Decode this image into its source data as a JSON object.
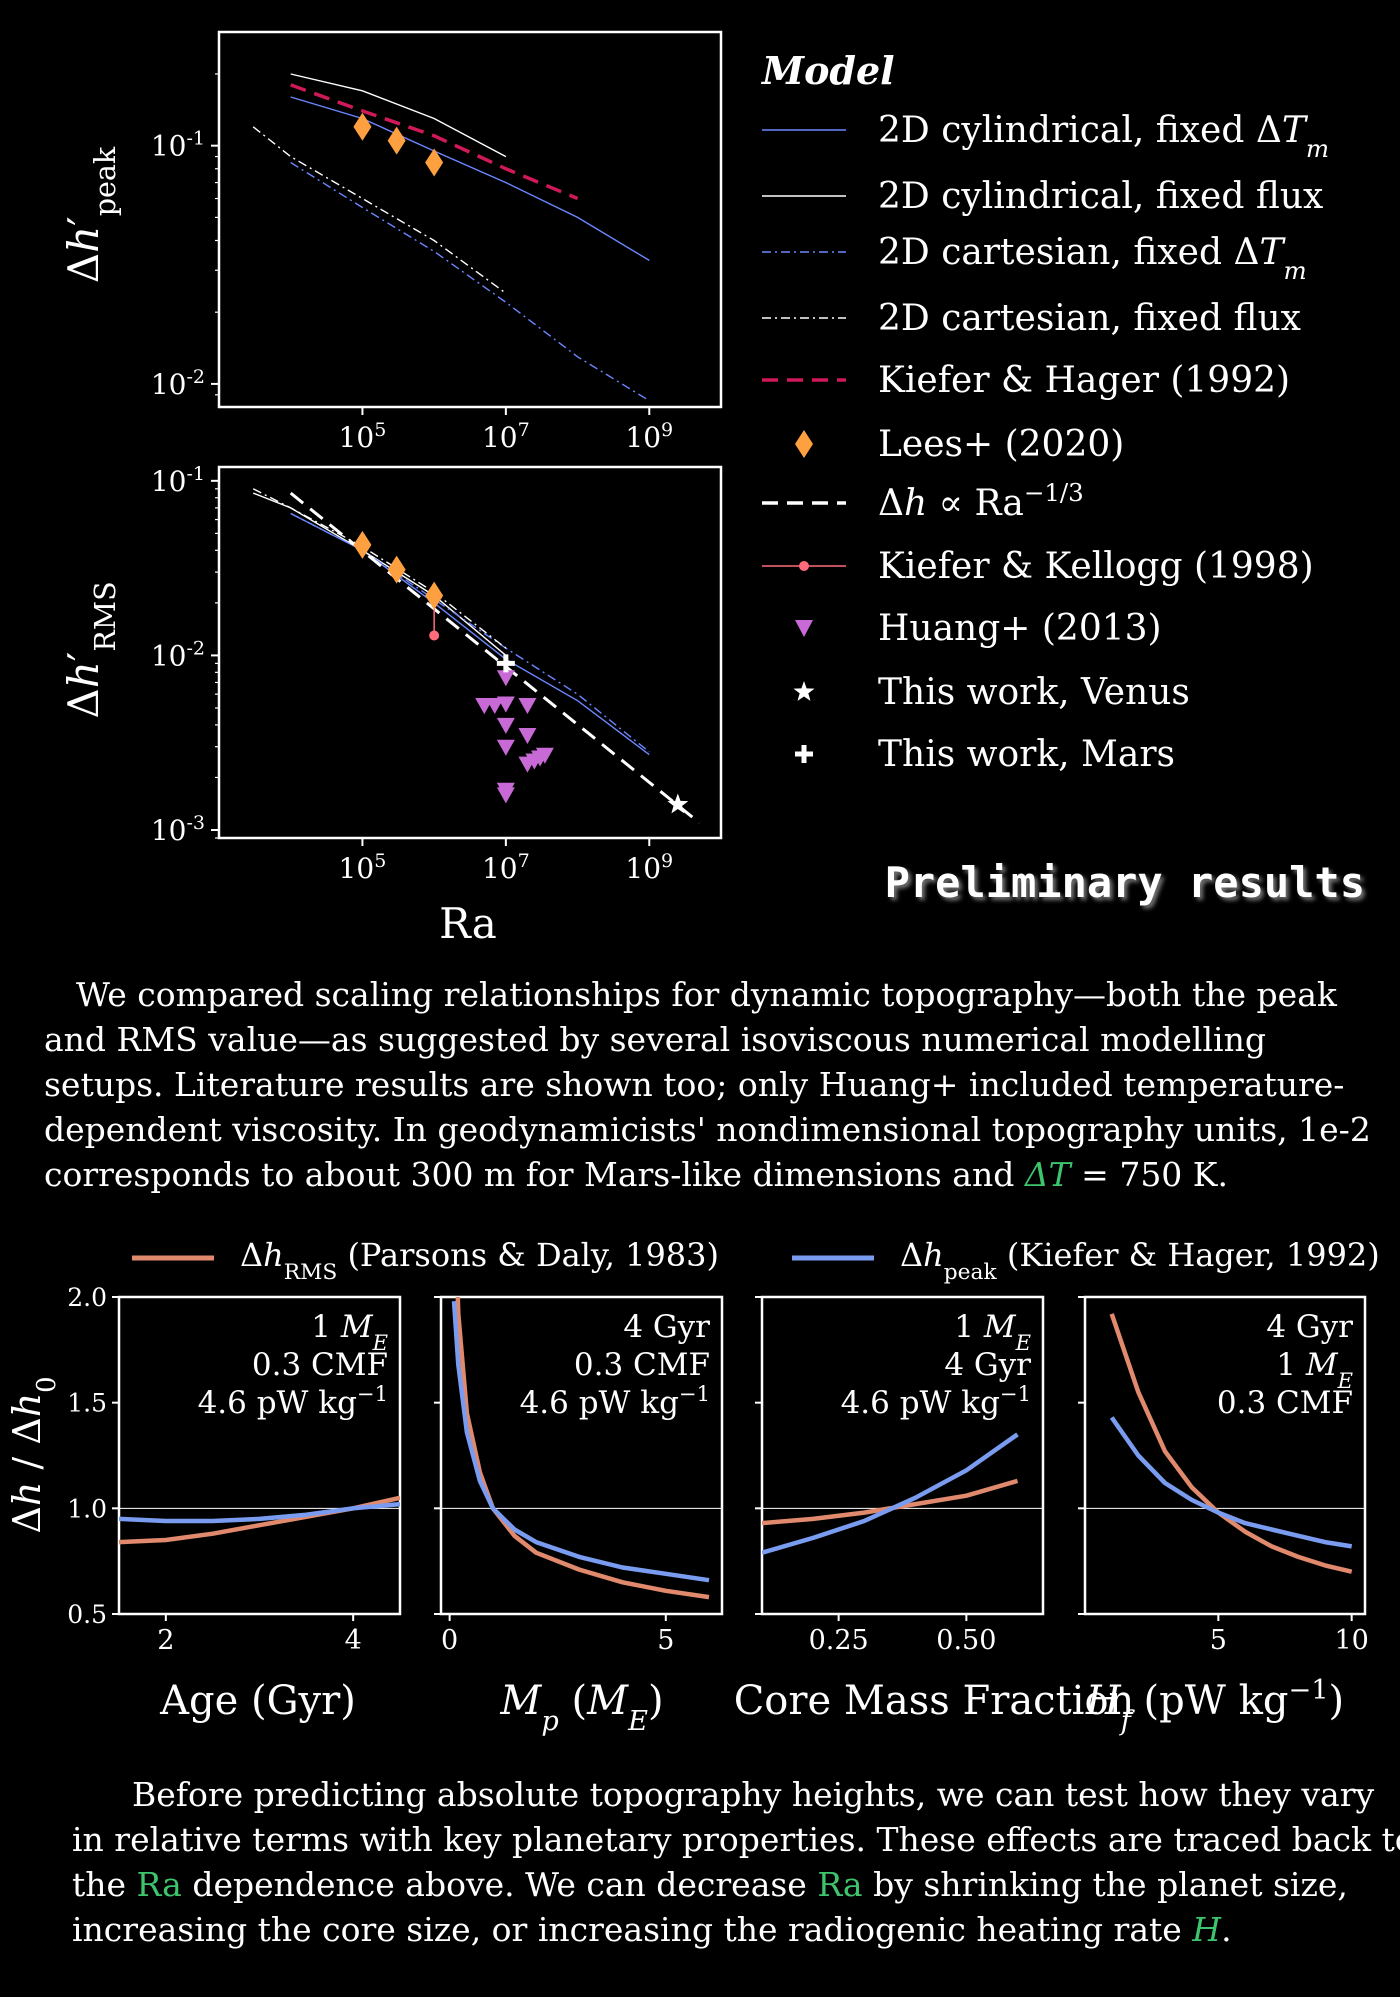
{
  "top_legend": {
    "title": "Model",
    "items": [
      {
        "label": "2D cylindrical, fixed ΔTm",
        "color": "#6b87ff",
        "style": "solid"
      },
      {
        "label": "2D cylindrical, fixed flux",
        "color": "#ffffff",
        "style": "solid"
      },
      {
        "label": "2D cartesian, fixed ΔTm",
        "color": "#6b87ff",
        "style": "dashdot"
      },
      {
        "label": "2D cartesian, fixed flux",
        "color": "#ffffff",
        "style": "dashdot"
      },
      {
        "label": "Kiefer & Hager (1992)",
        "color": "#d0195a",
        "style": "dashed"
      },
      {
        "label": "Lees+ (2020)",
        "color": "#ffa040",
        "style": "diamond"
      },
      {
        "label": "Δh ∝ Ra^-1/3",
        "color": "#ffffff",
        "style": "dashed"
      },
      {
        "label": "Kiefer & Kellogg (1998)",
        "color": "#ff6b7a",
        "style": "line-dot"
      },
      {
        "label": "Huang+ (2013)",
        "color": "#c86ad6",
        "style": "triangle"
      },
      {
        "label": "This work, Venus",
        "color": "#ffffff",
        "style": "star"
      },
      {
        "label": "This work, Mars",
        "color": "#ffffff",
        "style": "plus"
      }
    ]
  },
  "preliminary": "Preliminary results",
  "paragraph1": {
    "line1": "We compared scaling relationships for dynamic topography—both the peak",
    "line2": "and RMS value—as suggested by several isoviscous numerical modelling",
    "line3": "setups. Literature results are shown too; only Huang+ included temperature-",
    "line4": "dependent viscosity. In geodynamicists' nondimensional topography units, 1e-2",
    "line5a": "corresponds to about 300 m for Mars-like dimensions and ",
    "line5b": "ΔT",
    "line5c": " = 750 K."
  },
  "bottom_legend": {
    "rms": {
      "label": "Δh_RMS (Parsons & Daly, 1983)",
      "color": "#e0896c"
    },
    "peak": {
      "label": "Δh_peak (Kiefer & Hager, 1992)",
      "color": "#7a9cf0"
    }
  },
  "paragraph2": {
    "line1": "Before predicting absolute topography heights, we can test how they vary",
    "line2": "in relative terms with key planetary properties. These effects are traced back to",
    "line3a": "the ",
    "line3b": "Ra",
    "line3c": " dependence above. We can decrease ",
    "line3d": "Ra",
    "line3e": " by shrinking the planet size,",
    "line4a": "increasing the core size, or increasing the radiogenic heating rate ",
    "line4b": "H",
    "line4c": "."
  },
  "chart_data": [
    {
      "type": "line",
      "panel": "top",
      "xscale": "log",
      "yscale": "log",
      "xlim": [
        1000.0,
        10000000000.0
      ],
      "ylim": [
        0.008,
        0.3
      ],
      "ylabel": "Δh'_peak",
      "xticks": [
        100000.0,
        10000000.0,
        1000000000.0
      ],
      "xticklabels": [
        "10^5",
        "10^7",
        "10^9"
      ],
      "yticks": [
        0.01,
        0.1
      ],
      "yticklabels": [
        "10^-2",
        "10^-1"
      ],
      "series": [
        {
          "name": "2D cylindrical, fixed ΔTm",
          "x": [
            10000.0,
            100000.0,
            1000000.0,
            10000000.0,
            100000000.0,
            1000000000.0
          ],
          "y": [
            0.16,
            0.13,
            0.095,
            0.07,
            0.05,
            0.033
          ]
        },
        {
          "name": "2D cylindrical, fixed flux",
          "x": [
            10000.0,
            100000.0,
            1000000.0,
            10000000.0
          ],
          "y": [
            0.2,
            0.17,
            0.13,
            0.09
          ]
        },
        {
          "name": "2D cartesian, fixed ΔTm",
          "x": [
            10000.0,
            100000.0,
            1000000.0,
            10000000.0,
            100000000.0,
            1000000000.0
          ],
          "y": [
            0.085,
            0.055,
            0.036,
            0.022,
            0.013,
            0.0085
          ]
        },
        {
          "name": "2D cartesian, fixed flux",
          "x": [
            3000.0,
            10000.0,
            100000.0,
            1000000.0,
            10000000.0
          ],
          "y": [
            0.12,
            0.09,
            0.06,
            0.04,
            0.024
          ]
        },
        {
          "name": "Kiefer & Hager (1992)",
          "x": [
            10000.0,
            100000.0,
            1000000.0,
            10000000.0,
            100000000.0
          ],
          "y": [
            0.18,
            0.14,
            0.11,
            0.08,
            0.06
          ]
        },
        {
          "name": "Lees+ (2020)",
          "x": [
            100000.0,
            300000.0,
            1000000.0
          ],
          "y": [
            0.12,
            0.105,
            0.085
          ]
        }
      ]
    },
    {
      "type": "line",
      "panel": "middle",
      "xscale": "log",
      "yscale": "log",
      "xlim": [
        1000.0,
        10000000000.0
      ],
      "ylim": [
        0.0009,
        0.12
      ],
      "xlabel": "Ra",
      "ylabel": "Δh'_RMS",
      "xticks": [
        100000.0,
        10000000.0,
        1000000000.0
      ],
      "xticklabels": [
        "10^5",
        "10^7",
        "10^9"
      ],
      "yticks": [
        0.001,
        0.01,
        0.1
      ],
      "yticklabels": [
        "10^-3",
        "10^-2",
        "10^-1"
      ],
      "series": [
        {
          "name": "2D cylindrical, fixed ΔTm",
          "x": [
            10000.0,
            100000.0,
            1000000.0,
            10000000.0,
            100000000.0,
            1000000000.0
          ],
          "y": [
            0.065,
            0.04,
            0.02,
            0.0095,
            0.0055,
            0.0027
          ]
        },
        {
          "name": "2D cylindrical, fixed flux",
          "x": [
            3000.0,
            10000.0,
            100000.0,
            1000000.0,
            10000000.0
          ],
          "y": [
            0.085,
            0.07,
            0.04,
            0.022,
            0.01
          ]
        },
        {
          "name": "2D cartesian, fixed ΔTm",
          "x": [
            10000.0,
            100000.0,
            1000000.0,
            10000000.0,
            100000000.0,
            1000000000.0
          ],
          "y": [
            0.065,
            0.04,
            0.021,
            0.011,
            0.006,
            0.0028
          ]
        },
        {
          "name": "2D cartesian, fixed flux",
          "x": [
            3000.0,
            10000.0,
            100000.0,
            1000000.0,
            10000000.0
          ],
          "y": [
            0.09,
            0.07,
            0.042,
            0.023,
            0.011
          ]
        },
        {
          "name": "Δh ∝ Ra^-1/3",
          "x": [
            10000.0,
            5000000000.0
          ],
          "y": [
            0.085,
            0.0011
          ]
        },
        {
          "name": "Lees+ (2020)",
          "x": [
            100000.0,
            300000.0,
            1000000.0
          ],
          "y": [
            0.043,
            0.031,
            0.022
          ]
        },
        {
          "name": "Kiefer & Kellogg (1998)",
          "x": [
            1000000.0,
            1000000.0
          ],
          "y": [
            0.022,
            0.013
          ]
        },
        {
          "name": "Huang+ (2013)",
          "x": [
            5000000.0,
            10000000.0,
            10000000.0,
            10000000.0,
            10000000.0,
            10000000.0,
            20000000.0,
            20000000.0,
            20000000.0,
            25000000.0,
            30000000.0,
            35000000.0,
            10000000.0,
            7000000.0,
            5000000.0
          ],
          "y": [
            0.0052,
            0.0075,
            0.0053,
            0.004,
            0.003,
            0.0017,
            0.0052,
            0.0035,
            0.0024,
            0.0025,
            0.0026,
            0.0027,
            0.0016,
            0.0052,
            0.0052
          ]
        },
        {
          "name": "This work, Venus",
          "x": [
            2500000000.0
          ],
          "y": [
            0.0014
          ]
        },
        {
          "name": "This work, Mars",
          "x": [
            10000000.0
          ],
          "y": [
            0.009
          ]
        }
      ]
    },
    {
      "type": "line",
      "panel": "bottom-1",
      "xlabel": "Age (Gyr)",
      "ylabel": "Δh / Δh0",
      "xlim": [
        1.5,
        4.5
      ],
      "ylim": [
        0.5,
        2.0
      ],
      "xticks": [
        2,
        4
      ],
      "yticks": [
        0.5,
        1.0,
        1.5,
        2.0
      ],
      "annotation": [
        "1 ME",
        "0.3 CMF",
        "4.6 pW kg^-1"
      ],
      "series": [
        {
          "name": "Δh_RMS",
          "x": [
            1.5,
            2.0,
            2.5,
            3.0,
            3.5,
            4.0,
            4.5
          ],
          "y": [
            0.84,
            0.85,
            0.88,
            0.92,
            0.96,
            1.0,
            1.05
          ]
        },
        {
          "name": "Δh_peak",
          "x": [
            1.5,
            2.0,
            2.5,
            3.0,
            3.5,
            4.0,
            4.5
          ],
          "y": [
            0.95,
            0.94,
            0.94,
            0.95,
            0.97,
            1.0,
            1.02
          ]
        }
      ]
    },
    {
      "type": "line",
      "panel": "bottom-2",
      "xlabel": "Mp (ME)",
      "xlim": [
        -0.2,
        6.3
      ],
      "ylim": [
        0.5,
        2.0
      ],
      "xticks": [
        0,
        5
      ],
      "yticks": [
        0.5,
        1.0,
        1.5,
        2.0
      ],
      "annotation": [
        "4 Gyr",
        "0.3 CMF",
        "4.6 pW kg^-1"
      ],
      "series": [
        {
          "name": "Δh_RMS",
          "x": [
            0.1,
            0.2,
            0.4,
            0.7,
            1.0,
            1.5,
            2.0,
            3.0,
            4.0,
            5.0,
            6.0
          ],
          "y": [
            2.6,
            1.92,
            1.45,
            1.17,
            1.0,
            0.87,
            0.79,
            0.71,
            0.65,
            0.61,
            0.58
          ]
        },
        {
          "name": "Δh_peak",
          "x": [
            0.1,
            0.2,
            0.4,
            0.7,
            1.0,
            1.5,
            2.0,
            3.0,
            4.0,
            5.0,
            6.0
          ],
          "y": [
            1.98,
            1.68,
            1.36,
            1.13,
            1.0,
            0.9,
            0.84,
            0.77,
            0.72,
            0.69,
            0.66
          ]
        }
      ]
    },
    {
      "type": "line",
      "panel": "bottom-3",
      "xlabel": "Core Mass Fraction",
      "xlim": [
        0.1,
        0.65
      ],
      "ylim": [
        0.5,
        2.0
      ],
      "xticks": [
        0.25,
        0.5
      ],
      "xticklabels": [
        "0.25",
        "0.50"
      ],
      "yticks": [
        0.5,
        1.0,
        1.5,
        2.0
      ],
      "annotation": [
        "1 ME",
        "4 Gyr",
        "4.6 pW kg^-1"
      ],
      "series": [
        {
          "name": "Δh_RMS",
          "x": [
            0.1,
            0.2,
            0.3,
            0.4,
            0.5,
            0.6
          ],
          "y": [
            0.93,
            0.95,
            0.98,
            1.02,
            1.06,
            1.13
          ]
        },
        {
          "name": "Δh_peak",
          "x": [
            0.1,
            0.2,
            0.3,
            0.4,
            0.5,
            0.6
          ],
          "y": [
            0.79,
            0.86,
            0.94,
            1.05,
            1.18,
            1.35
          ]
        }
      ]
    },
    {
      "type": "line",
      "panel": "bottom-4",
      "xlabel": "Hf (pW kg^-1)",
      "xlim": [
        0,
        10.5
      ],
      "ylim": [
        0.5,
        2.0
      ],
      "xticks": [
        5,
        10
      ],
      "yticks": [
        0.5,
        1.0,
        1.5,
        2.0
      ],
      "annotation": [
        "4 Gyr",
        "1 ME",
        "0.3 CMF"
      ],
      "series": [
        {
          "name": "Δh_RMS",
          "x": [
            1.0,
            2.0,
            3.0,
            4.0,
            5.0,
            6.0,
            7.0,
            8.0,
            9.0,
            10.0
          ],
          "y": [
            1.92,
            1.55,
            1.27,
            1.1,
            0.98,
            0.89,
            0.82,
            0.77,
            0.73,
            0.7
          ]
        },
        {
          "name": "Δh_peak",
          "x": [
            1.0,
            2.0,
            3.0,
            4.0,
            5.0,
            6.0,
            7.0,
            8.0,
            9.0,
            10.0
          ],
          "y": [
            1.43,
            1.25,
            1.12,
            1.04,
            0.98,
            0.93,
            0.9,
            0.87,
            0.84,
            0.82
          ]
        }
      ]
    }
  ]
}
